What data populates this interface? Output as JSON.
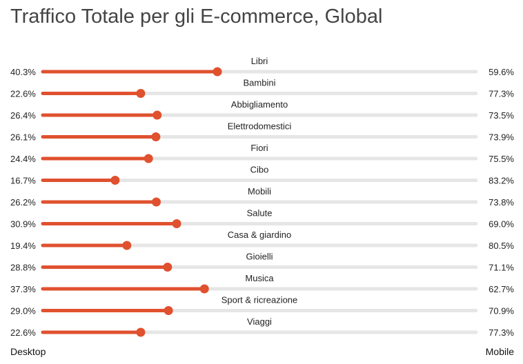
{
  "title": "Traffico Totale per gli E-commerce, Global",
  "footer": {
    "left_label": "Desktop",
    "right_label": "Mobile"
  },
  "colors": {
    "accent": "#e0512f",
    "track": "#e6e6e6"
  },
  "chart_data": {
    "type": "bar",
    "title": "Traffico Totale per gli E-commerce, Global",
    "categories": [
      "Libri",
      "Bambini",
      "Abbigliamento",
      "Elettrodomestici",
      "Fiori",
      "Cibo",
      "Mobili",
      "Salute",
      "Casa & giardino",
      "Gioielli",
      "Musica",
      "Sport & ricreazione",
      "Viaggi"
    ],
    "series": [
      {
        "name": "Desktop",
        "values": [
          40.3,
          22.6,
          26.4,
          26.1,
          24.4,
          16.7,
          26.2,
          30.9,
          19.4,
          28.8,
          37.3,
          29.0,
          22.6
        ],
        "labels": [
          "40.3%",
          "22.6%",
          "26.4%",
          "26.1%",
          "24.4%",
          "16.7%",
          "26.2%",
          "30.9%",
          "19.4%",
          "28.8%",
          "37.3%",
          "29.0%",
          "22.6%"
        ]
      },
      {
        "name": "Mobile",
        "values": [
          59.6,
          77.3,
          73.5,
          73.9,
          75.5,
          83.2,
          73.8,
          69.0,
          80.5,
          71.1,
          62.7,
          70.9,
          77.3
        ],
        "labels": [
          "59.6%",
          "77.3%",
          "73.5%",
          "73.9%",
          "75.5%",
          "83.2%",
          "73.8%",
          "69.0%",
          "80.5%",
          "71.1%",
          "62.7%",
          "70.9%",
          "77.3%"
        ]
      }
    ],
    "xlim": [
      0,
      100
    ],
    "grid": false
  }
}
